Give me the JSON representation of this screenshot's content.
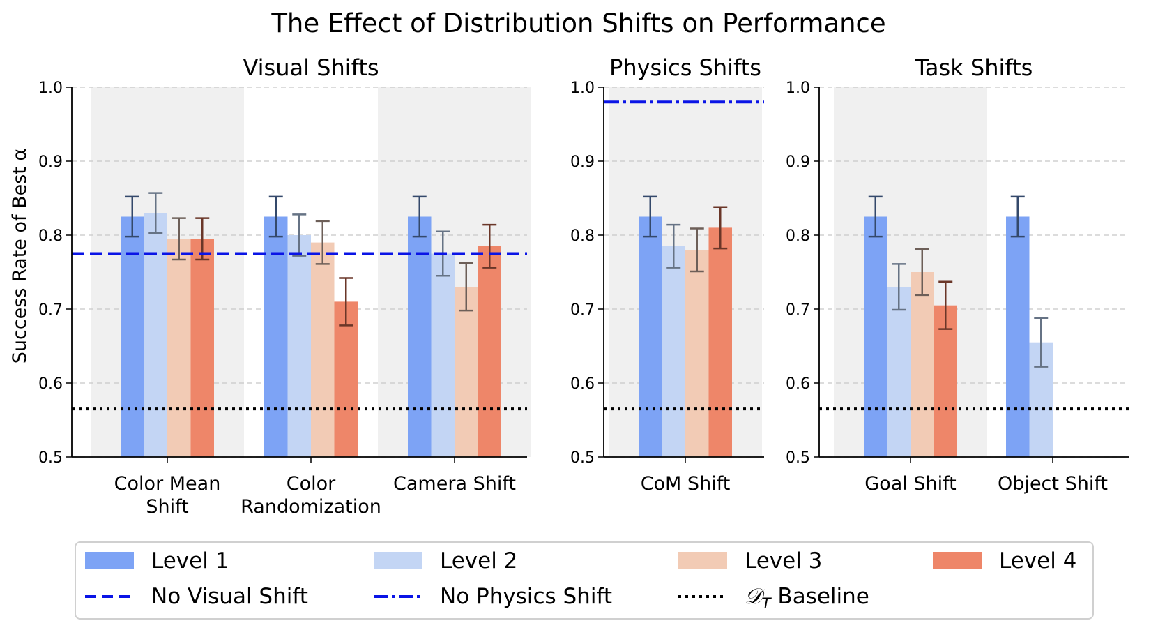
{
  "title": "The Effect of Distribution Shifts on Performance",
  "ylabel": "Success Rate of Best α",
  "ylim": [
    0.5,
    1.0
  ],
  "yticks": [
    "0.5",
    "0.6",
    "0.7",
    "0.8",
    "0.9",
    "1.0"
  ],
  "colors": {
    "level1": "#7da3f5",
    "level2": "#c3d5f4",
    "level3": "#f2cbb5",
    "level4": "#ee8669",
    "no_visual_shift": "#0a14e6",
    "no_physics_shift": "#0a14e6",
    "baseline": "#000000",
    "shade": "#f0f0f0"
  },
  "legend": {
    "level1": "Level 1",
    "level2": "Level 2",
    "level3": "Level 3",
    "level4": "Level 4",
    "no_visual_shift": "No Visual Shift",
    "no_physics_shift": "No Physics Shift",
    "baseline_prefix": "𝒟",
    "baseline_sub": "T",
    "baseline_suffix": " Baseline"
  },
  "chart_data": [
    {
      "type": "bar",
      "title": "Visual Shifts",
      "ylabel": "Success Rate of Best α",
      "ylim": [
        0.5,
        1.0
      ],
      "grid": true,
      "categories": [
        {
          "lines": [
            "Color Mean",
            "Shift"
          ],
          "shaded": true
        },
        {
          "lines": [
            "Color",
            "Randomization"
          ],
          "shaded": false
        },
        {
          "lines": [
            "Camera Shift"
          ],
          "shaded": true
        }
      ],
      "series": [
        {
          "name": "Level 1",
          "values": [
            0.825,
            0.825,
            0.825
          ],
          "errors": [
            0.027,
            0.027,
            0.027
          ]
        },
        {
          "name": "Level 2",
          "values": [
            0.83,
            0.8,
            0.775
          ],
          "errors": [
            0.027,
            0.028,
            0.03
          ]
        },
        {
          "name": "Level 3",
          "values": [
            0.795,
            0.79,
            0.73
          ],
          "errors": [
            0.028,
            0.029,
            0.032
          ]
        },
        {
          "name": "Level 4",
          "values": [
            0.795,
            0.71,
            0.785
          ],
          "errors": [
            0.028,
            0.032,
            0.029
          ]
        }
      ],
      "reference_lines": [
        {
          "name": "No Visual Shift",
          "value": 0.775,
          "style": "dashed"
        },
        {
          "name": "D_T Baseline",
          "value": 0.565,
          "style": "dotted"
        }
      ]
    },
    {
      "type": "bar",
      "title": "Physics Shifts",
      "ylim": [
        0.5,
        1.0
      ],
      "grid": true,
      "categories": [
        {
          "lines": [
            "CoM Shift"
          ],
          "shaded": true
        }
      ],
      "series": [
        {
          "name": "Level 1",
          "values": [
            0.825
          ],
          "errors": [
            0.027
          ]
        },
        {
          "name": "Level 2",
          "values": [
            0.785
          ],
          "errors": [
            0.029
          ]
        },
        {
          "name": "Level 3",
          "values": [
            0.78
          ],
          "errors": [
            0.029
          ]
        },
        {
          "name": "Level 4",
          "values": [
            0.81
          ],
          "errors": [
            0.028
          ]
        }
      ],
      "reference_lines": [
        {
          "name": "No Physics Shift",
          "value": 0.98,
          "style": "dashdot"
        },
        {
          "name": "D_T Baseline",
          "value": 0.565,
          "style": "dotted"
        }
      ]
    },
    {
      "type": "bar",
      "title": "Task Shifts",
      "ylim": [
        0.5,
        1.0
      ],
      "grid": true,
      "categories": [
        {
          "lines": [
            "Goal Shift"
          ],
          "shaded": true
        },
        {
          "lines": [
            "Object Shift"
          ],
          "shaded": false
        }
      ],
      "series": [
        {
          "name": "Level 1",
          "values": [
            0.825,
            0.825
          ],
          "errors": [
            0.027,
            0.027
          ]
        },
        {
          "name": "Level 2",
          "values": [
            0.73,
            0.655
          ],
          "errors": [
            0.031,
            0.033
          ]
        },
        {
          "name": "Level 3",
          "values": [
            0.75,
            null
          ],
          "errors": [
            0.031,
            null
          ]
        },
        {
          "name": "Level 4",
          "values": [
            0.705,
            null
          ],
          "errors": [
            0.032,
            null
          ]
        }
      ],
      "reference_lines": [
        {
          "name": "D_T Baseline",
          "value": 0.565,
          "style": "dotted"
        }
      ]
    }
  ]
}
